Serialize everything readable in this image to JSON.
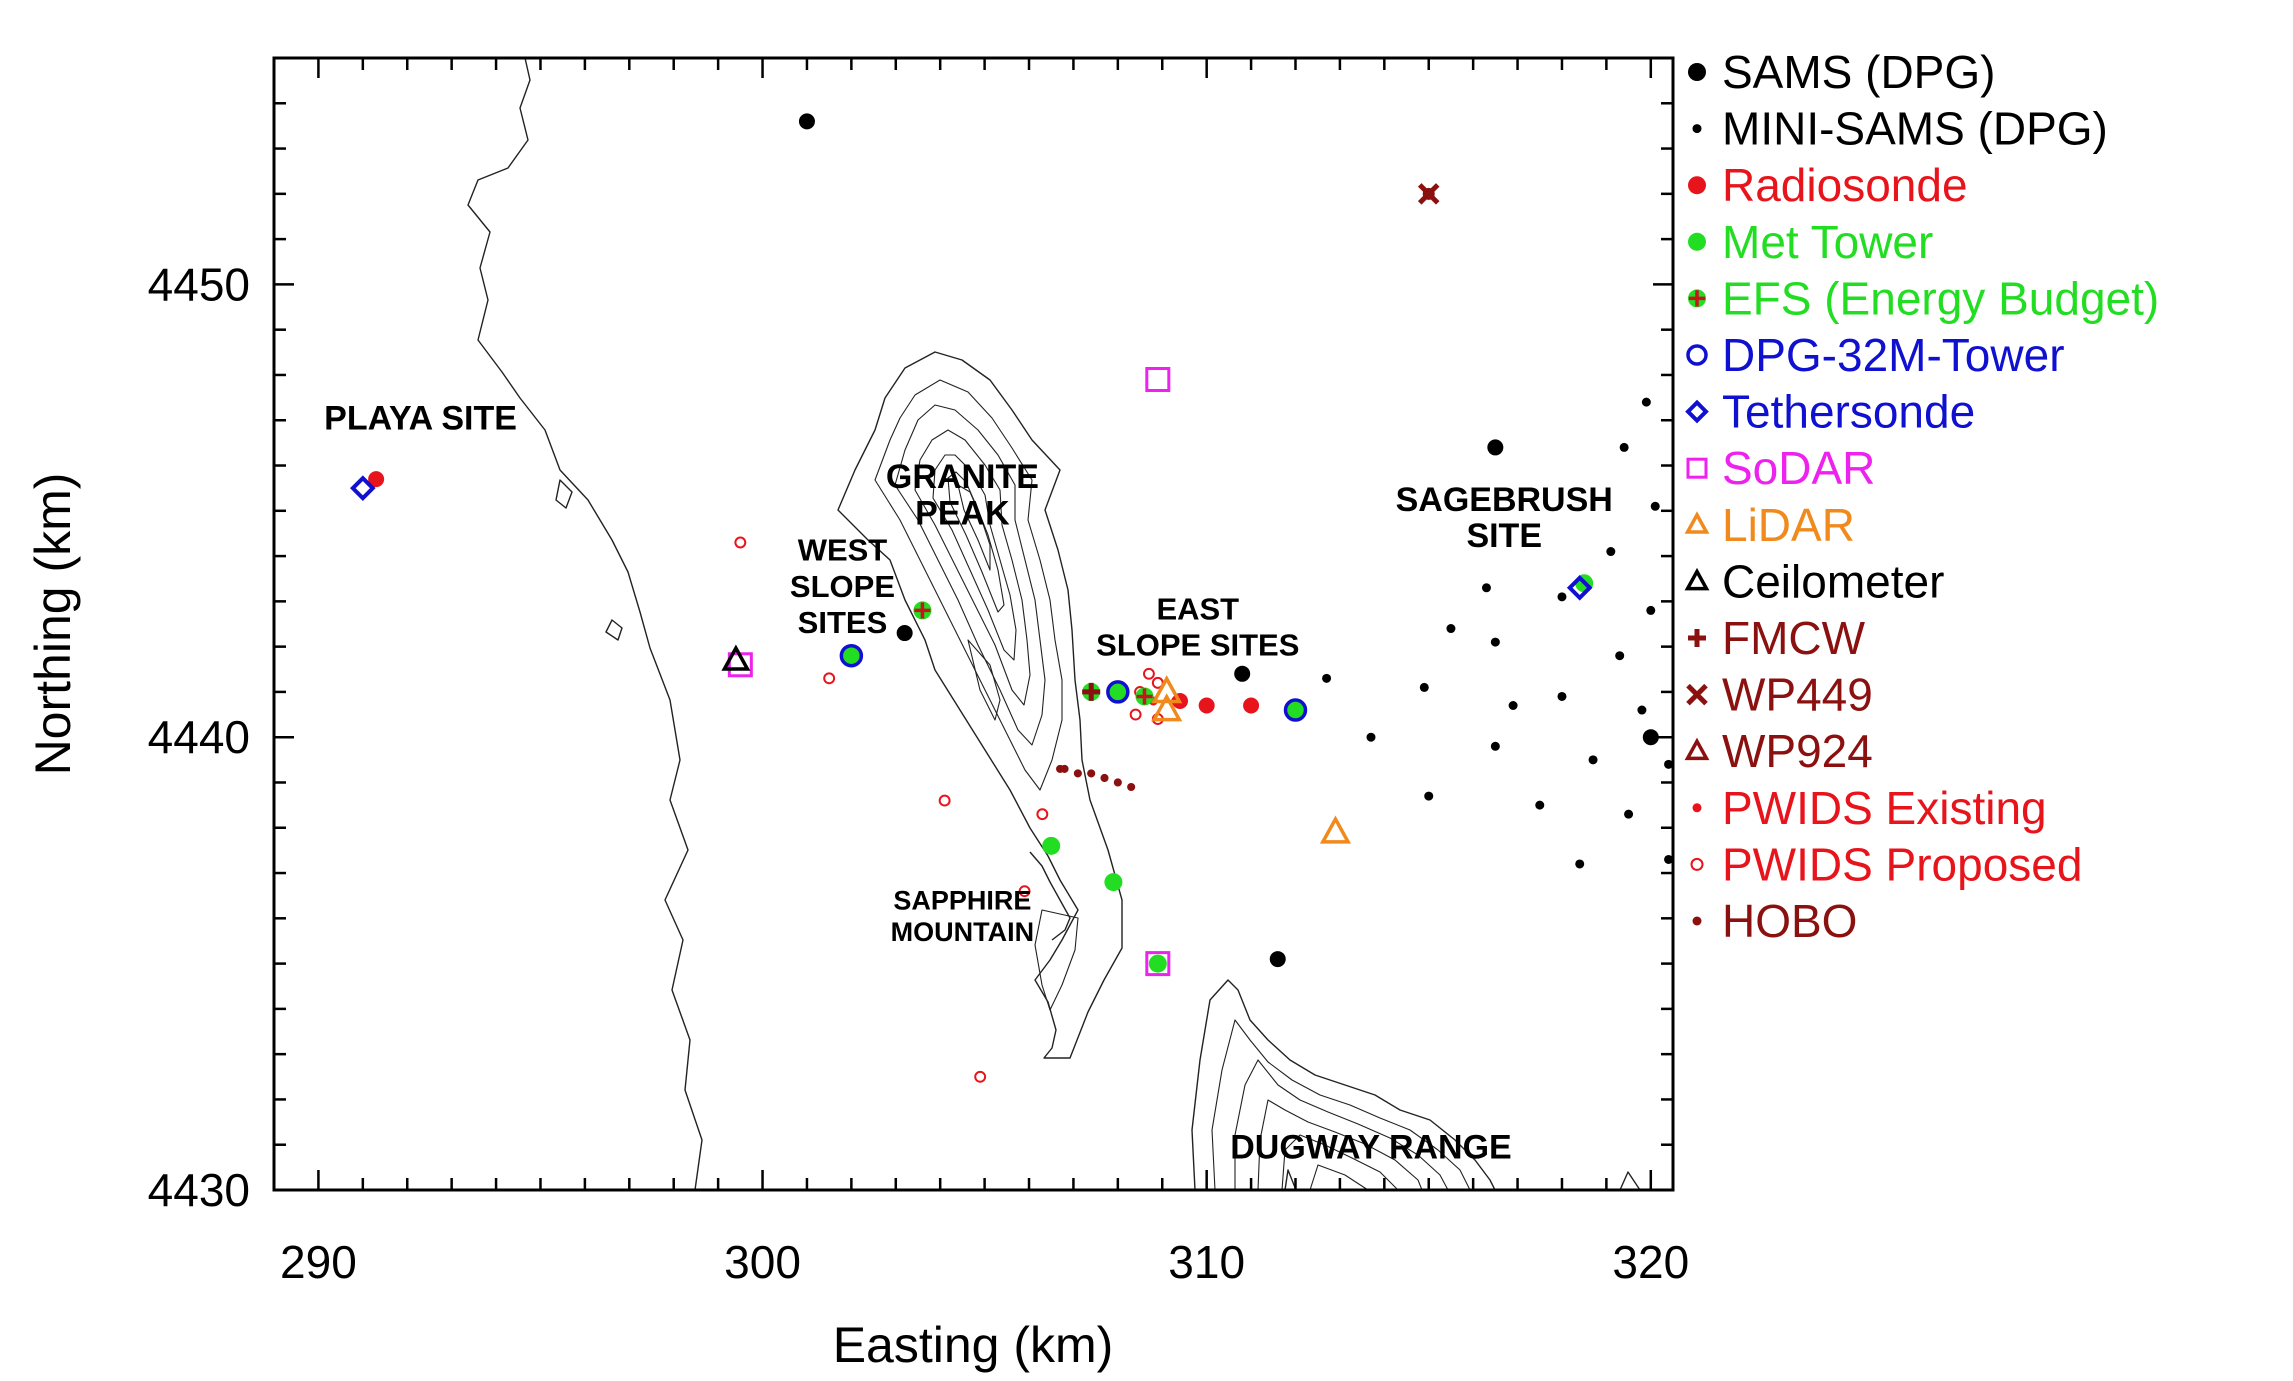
{
  "map": {
    "axes": {
      "xlabel": "Easting (km)",
      "ylabel": "Northing (km)",
      "xlim": [
        289,
        320.5
      ],
      "ylim": [
        4430,
        4455
      ],
      "xticks": [
        290,
        300,
        310,
        320
      ],
      "yticks": [
        4430,
        4440,
        4450
      ],
      "xtick_labels": [
        "290",
        "300",
        "310",
        "320"
      ],
      "ytick_labels": [
        "4430",
        "4440",
        "4450"
      ]
    },
    "site_labels": [
      {
        "text": "PLAYA SITE",
        "x": 292.3,
        "y": 4446.8
      },
      {
        "text": "GRANITE",
        "x": 304.5,
        "y": 4445.5
      },
      {
        "text": "PEAK",
        "x": 304.5,
        "y": 4444.7
      },
      {
        "text": "WEST",
        "x": 301.8,
        "y": 4443.9
      },
      {
        "text": "SLOPE",
        "x": 301.8,
        "y": 4443.1
      },
      {
        "text": "SITES",
        "x": 301.8,
        "y": 4442.3
      },
      {
        "text": "EAST",
        "x": 309.8,
        "y": 4442.6
      },
      {
        "text": "SLOPE SITES",
        "x": 309.8,
        "y": 4441.8
      },
      {
        "text": "SAGEBRUSH",
        "x": 316.7,
        "y": 4445.0
      },
      {
        "text": "SITE",
        "x": 316.7,
        "y": 4444.2
      },
      {
        "text": "SAPPHIRE",
        "x": 304.5,
        "y": 4436.2
      },
      {
        "text": "MOUNTAIN",
        "x": 304.5,
        "y": 4435.5
      },
      {
        "text": "DUGWAY RANGE",
        "x": 313.7,
        "y": 4430.7
      }
    ],
    "legend": {
      "placement": "right",
      "entries": [
        {
          "label": "SAMS (DPG)",
          "color": "#000000",
          "symbol": "filled-circle"
        },
        {
          "label": "MINI-SAMS (DPG)",
          "color": "#000000",
          "symbol": "small-dot"
        },
        {
          "label": "Radiosonde",
          "color": "#e8141c",
          "symbol": "filled-circle"
        },
        {
          "label": "Met Tower",
          "color": "#22dd22",
          "symbol": "filled-circle"
        },
        {
          "label": "EFS (Energy Budget)",
          "color": "#22dd22",
          "symbol": "circle-plus"
        },
        {
          "label": "DPG-32M-Tower",
          "color": "#1010d0",
          "symbol": "open-circle"
        },
        {
          "label": "Tethersonde",
          "color": "#1010d0",
          "symbol": "diamond"
        },
        {
          "label": "SoDAR",
          "color": "#ee22ee",
          "symbol": "open-square"
        },
        {
          "label": "LiDAR",
          "color": "#f08a1c",
          "symbol": "triangle"
        },
        {
          "label": "Ceilometer",
          "color": "#000000",
          "symbol": "triangle"
        },
        {
          "label": "FMCW",
          "color": "#8b1010",
          "symbol": "plus"
        },
        {
          "label": "WP449",
          "color": "#8b1010",
          "symbol": "x"
        },
        {
          "label": "WP924",
          "color": "#8b1010",
          "symbol": "triangle"
        },
        {
          "label": "PWIDS Existing",
          "color": "#e8141c",
          "symbol": "small-dot"
        },
        {
          "label": "PWIDS Proposed",
          "color": "#e8141c",
          "symbol": "small-open-circle"
        },
        {
          "label": "HOBO",
          "color": "#8b1010",
          "symbol": "small-dot"
        }
      ]
    },
    "markers": {
      "sams": [
        [
          301.0,
          4453.6
        ],
        [
          303.2,
          4442.3
        ],
        [
          310.8,
          4441.4
        ],
        [
          311.6,
          4435.1
        ],
        [
          316.5,
          4446.4
        ],
        [
          320.0,
          4440.0
        ]
      ],
      "mini_sams": [
        [
          319.9,
          4447.4
        ],
        [
          319.4,
          4446.4
        ],
        [
          320.1,
          4445.1
        ],
        [
          319.1,
          4444.1
        ],
        [
          318.0,
          4443.1
        ],
        [
          316.3,
          4443.3
        ],
        [
          315.5,
          4442.4
        ],
        [
          316.5,
          4442.1
        ],
        [
          319.3,
          4441.8
        ],
        [
          320.0,
          4442.8
        ],
        [
          312.7,
          4441.3
        ],
        [
          314.9,
          4441.1
        ],
        [
          316.9,
          4440.7
        ],
        [
          318.0,
          4440.9
        ],
        [
          319.8,
          4440.6
        ],
        [
          313.7,
          4440.0
        ],
        [
          316.5,
          4439.8
        ],
        [
          318.7,
          4439.5
        ],
        [
          320.4,
          4439.4
        ],
        [
          315.0,
          4438.7
        ],
        [
          317.5,
          4438.5
        ],
        [
          319.5,
          4438.3
        ],
        [
          320.4,
          4437.3
        ],
        [
          318.4,
          4437.2
        ]
      ],
      "radiosonde": [
        [
          291.3,
          4445.7
        ],
        [
          310.0,
          4440.7
        ],
        [
          311.0,
          4440.7
        ],
        [
          309.4,
          4440.8
        ]
      ],
      "met_tower": [
        [
          302.0,
          4441.8
        ],
        [
          308.0,
          4441.0
        ],
        [
          312.0,
          4440.6
        ],
        [
          306.5,
          4437.6
        ],
        [
          307.9,
          4436.8
        ],
        [
          308.9,
          4435.0
        ],
        [
          318.5,
          4443.4
        ]
      ],
      "efs": [
        [
          303.6,
          4442.8
        ],
        [
          307.4,
          4441.0
        ],
        [
          308.6,
          4440.9
        ]
      ],
      "dpg32m": [
        [
          302.0,
          4441.8
        ],
        [
          308.0,
          4441.0
        ],
        [
          312.0,
          4440.6
        ]
      ],
      "tethersonde": [
        [
          291.0,
          4445.5
        ],
        [
          318.4,
          4443.3
        ]
      ],
      "sodar": [
        [
          299.5,
          4441.6
        ],
        [
          308.9,
          4447.9
        ],
        [
          308.9,
          4435.0
        ]
      ],
      "lidar": [
        [
          309.1,
          4441.0
        ],
        [
          309.1,
          4440.6
        ],
        [
          312.9,
          4437.9
        ]
      ],
      "ceilometer": [
        [
          299.4,
          4441.7
        ]
      ],
      "fmcw": [
        [
          307.4,
          4441.0
        ]
      ],
      "wp449": [
        [
          315.0,
          4452.0
        ]
      ],
      "pwids_existing": [
        [
          309.3,
          4440.8
        ],
        [
          308.8,
          4440.8
        ]
      ],
      "pwids_proposed": [
        [
          299.5,
          4444.3
        ],
        [
          301.5,
          4441.3
        ],
        [
          304.1,
          4438.6
        ],
        [
          306.3,
          4438.3
        ],
        [
          305.9,
          4436.6
        ],
        [
          304.9,
          4432.5
        ],
        [
          308.7,
          4441.4
        ],
        [
          308.5,
          4441.0
        ],
        [
          308.4,
          4440.5
        ],
        [
          308.9,
          4441.2
        ],
        [
          308.9,
          4440.4
        ]
      ],
      "hobo": [
        [
          306.8,
          4439.3
        ],
        [
          307.1,
          4439.2
        ],
        [
          307.4,
          4439.2
        ],
        [
          307.7,
          4439.1
        ],
        [
          308.0,
          4439.0
        ],
        [
          308.3,
          4438.9
        ],
        [
          306.7,
          4439.3
        ]
      ]
    }
  }
}
